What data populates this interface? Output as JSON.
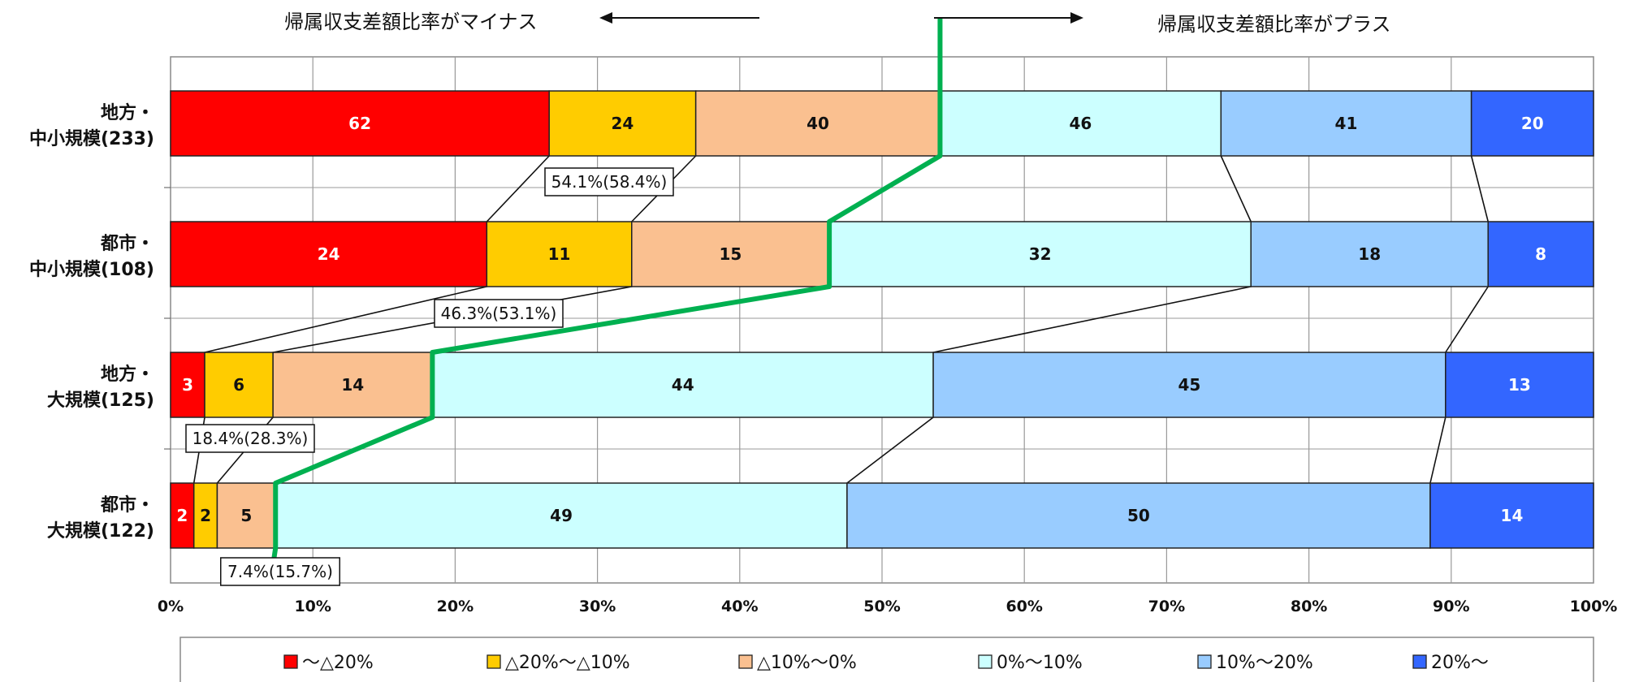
{
  "chart_data": {
    "type": "bar",
    "orientation": "horizontal",
    "stacked": "percent",
    "categories": [
      [
        "地方・",
        "中小規模(233)"
      ],
      [
        "都市・",
        "中小規模(108)"
      ],
      [
        "地方・",
        "大規模(125)"
      ],
      [
        "都市・",
        "大規模(122)"
      ]
    ],
    "series": [
      {
        "name": "～△20%",
        "color": "#ff0000",
        "values": [
          62,
          24,
          3,
          2
        ]
      },
      {
        "name": "△20%～△10%",
        "color": "#ffcc00",
        "values": [
          24,
          11,
          6,
          2
        ]
      },
      {
        "name": "△10%～0%",
        "color": "#fac090",
        "values": [
          40,
          15,
          14,
          5
        ]
      },
      {
        "name": "0%～10%",
        "color": "#ccffff",
        "values": [
          46,
          32,
          44,
          49
        ]
      },
      {
        "name": "10%～20%",
        "color": "#99ccff",
        "values": [
          41,
          18,
          45,
          50
        ]
      },
      {
        "name": "20%～",
        "color": "#3366ff",
        "values": [
          20,
          8,
          13,
          14
        ]
      }
    ],
    "label_colors": [
      "#ffffff",
      "#111111",
      "#111111",
      "#111111",
      "#111111",
      "#ffffff"
    ],
    "minus_share_labels": [
      "54.1%(58.4%)",
      "46.3%(53.1%)",
      "18.4%(28.3%)",
      "7.4%(15.7%)"
    ],
    "xticks": [
      "0%",
      "10%",
      "20%",
      "30%",
      "40%",
      "50%",
      "60%",
      "70%",
      "80%",
      "90%",
      "100%"
    ],
    "xlim": [
      0,
      100
    ],
    "grid": true,
    "legend_position": "bottom",
    "annotations": {
      "minus_direction": "帰属収支差額比率がマイナス",
      "plus_direction": "帰属収支差額比率がプラス"
    },
    "divider_line_color": "#00b050"
  }
}
